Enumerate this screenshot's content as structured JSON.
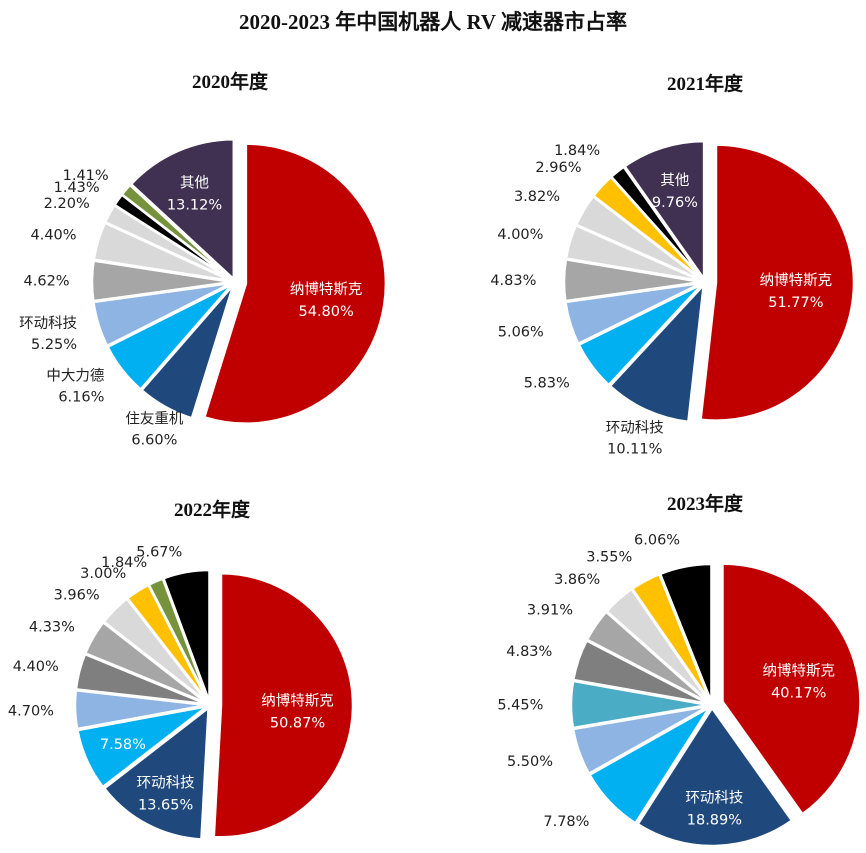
{
  "title": "2020-2023 年中国机器人 RV 减速器市占率",
  "colors": {
    "nabtesco": "#c00000",
    "navy": "#1f497d",
    "cyan": "#00b0f0",
    "lightblue": "#8eb4e3",
    "teal": "#4bacc6",
    "gray": "#a6a6a6",
    "darkgray": "#7f7f7f",
    "lightgray": "#d9d9d9",
    "gold": "#ffc000",
    "olive": "#76923c",
    "black": "#000000",
    "purple": "#403152"
  },
  "chart_data": [
    {
      "type": "pie",
      "title": "2020年度",
      "slices": [
        {
          "label": "纳博特斯克",
          "value": 54.8,
          "display": "54.80%",
          "color": "nabtesco",
          "inside": true
        },
        {
          "label": "住友重机",
          "value": 6.6,
          "display": "6.60%",
          "color": "navy"
        },
        {
          "label": "中大力德",
          "value": 6.16,
          "display": "6.16%",
          "color": "cyan"
        },
        {
          "label": "环动科技",
          "value": 5.25,
          "display": "5.25%",
          "color": "lightblue"
        },
        {
          "label": "",
          "value": 4.62,
          "display": "4.62%",
          "color": "gray"
        },
        {
          "label": "",
          "value": 4.4,
          "display": "4.40%",
          "color": "lightgray"
        },
        {
          "label": "",
          "value": 2.2,
          "display": "2.20%",
          "color": "lightgray"
        },
        {
          "label": "",
          "value": 1.43,
          "display": "1.43%",
          "color": "black"
        },
        {
          "label": "",
          "value": 1.41,
          "display": "1.41%",
          "color": "olive"
        },
        {
          "label": "其他",
          "value": 13.12,
          "display": "13.12%",
          "color": "purple",
          "inside": true
        }
      ]
    },
    {
      "type": "pie",
      "title": "2021年度",
      "slices": [
        {
          "label": "纳博特斯克",
          "value": 51.77,
          "display": "51.77%",
          "color": "nabtesco",
          "inside": true
        },
        {
          "label": "环动科技",
          "value": 10.11,
          "display": "10.11%",
          "color": "navy"
        },
        {
          "label": "",
          "value": 5.83,
          "display": "5.83%",
          "color": "cyan"
        },
        {
          "label": "",
          "value": 5.06,
          "display": "5.06%",
          "color": "lightblue"
        },
        {
          "label": "",
          "value": 4.83,
          "display": "4.83%",
          "color": "gray"
        },
        {
          "label": "",
          "value": 4.0,
          "display": "4.00%",
          "color": "lightgray"
        },
        {
          "label": "",
          "value": 3.82,
          "display": "3.82%",
          "color": "lightgray"
        },
        {
          "label": "",
          "value": 2.96,
          "display": "2.96%",
          "color": "gold"
        },
        {
          "label": "",
          "value": 1.84,
          "display": "1.84%",
          "color": "black"
        },
        {
          "label": "其他",
          "value": 9.76,
          "display": "9.76%",
          "color": "purple",
          "inside": true
        }
      ]
    },
    {
      "type": "pie",
      "title": "2022年度",
      "slices": [
        {
          "label": "纳博特斯克",
          "value": 50.87,
          "display": "50.87%",
          "color": "nabtesco",
          "inside": true
        },
        {
          "label": "环动科技",
          "value": 13.65,
          "display": "13.65%",
          "color": "navy",
          "inside": true
        },
        {
          "label": "",
          "value": 7.58,
          "display": "7.58%",
          "color": "cyan",
          "inside": true
        },
        {
          "label": "",
          "value": 4.7,
          "display": "4.70%",
          "color": "lightblue"
        },
        {
          "label": "",
          "value": 4.4,
          "display": "4.40%",
          "color": "darkgray"
        },
        {
          "label": "",
          "value": 4.33,
          "display": "4.33%",
          "color": "gray"
        },
        {
          "label": "",
          "value": 3.96,
          "display": "3.96%",
          "color": "lightgray"
        },
        {
          "label": "",
          "value": 3.0,
          "display": "3.00%",
          "color": "gold"
        },
        {
          "label": "",
          "value": 1.84,
          "display": "1.84%",
          "color": "olive"
        },
        {
          "label": "",
          "value": 5.67,
          "display": "5.67%",
          "color": "black"
        }
      ]
    },
    {
      "type": "pie",
      "title": "2023年度",
      "slices": [
        {
          "label": "纳博特斯克",
          "value": 40.17,
          "display": "40.17%",
          "color": "nabtesco",
          "inside": true
        },
        {
          "label": "环动科技",
          "value": 18.89,
          "display": "18.89%",
          "color": "navy",
          "inside": true
        },
        {
          "label": "",
          "value": 7.78,
          "display": "7.78%",
          "color": "cyan"
        },
        {
          "label": "",
          "value": 5.5,
          "display": "5.50%",
          "color": "lightblue"
        },
        {
          "label": "",
          "value": 5.45,
          "display": "5.45%",
          "color": "teal"
        },
        {
          "label": "",
          "value": 4.83,
          "display": "4.83%",
          "color": "darkgray"
        },
        {
          "label": "",
          "value": 3.91,
          "display": "3.91%",
          "color": "gray"
        },
        {
          "label": "",
          "value": 3.86,
          "display": "3.86%",
          "color": "lightgray"
        },
        {
          "label": "",
          "value": 3.55,
          "display": "3.55%",
          "color": "gold"
        },
        {
          "label": "",
          "value": 6.06,
          "display": "6.06%",
          "color": "black"
        }
      ]
    }
  ]
}
